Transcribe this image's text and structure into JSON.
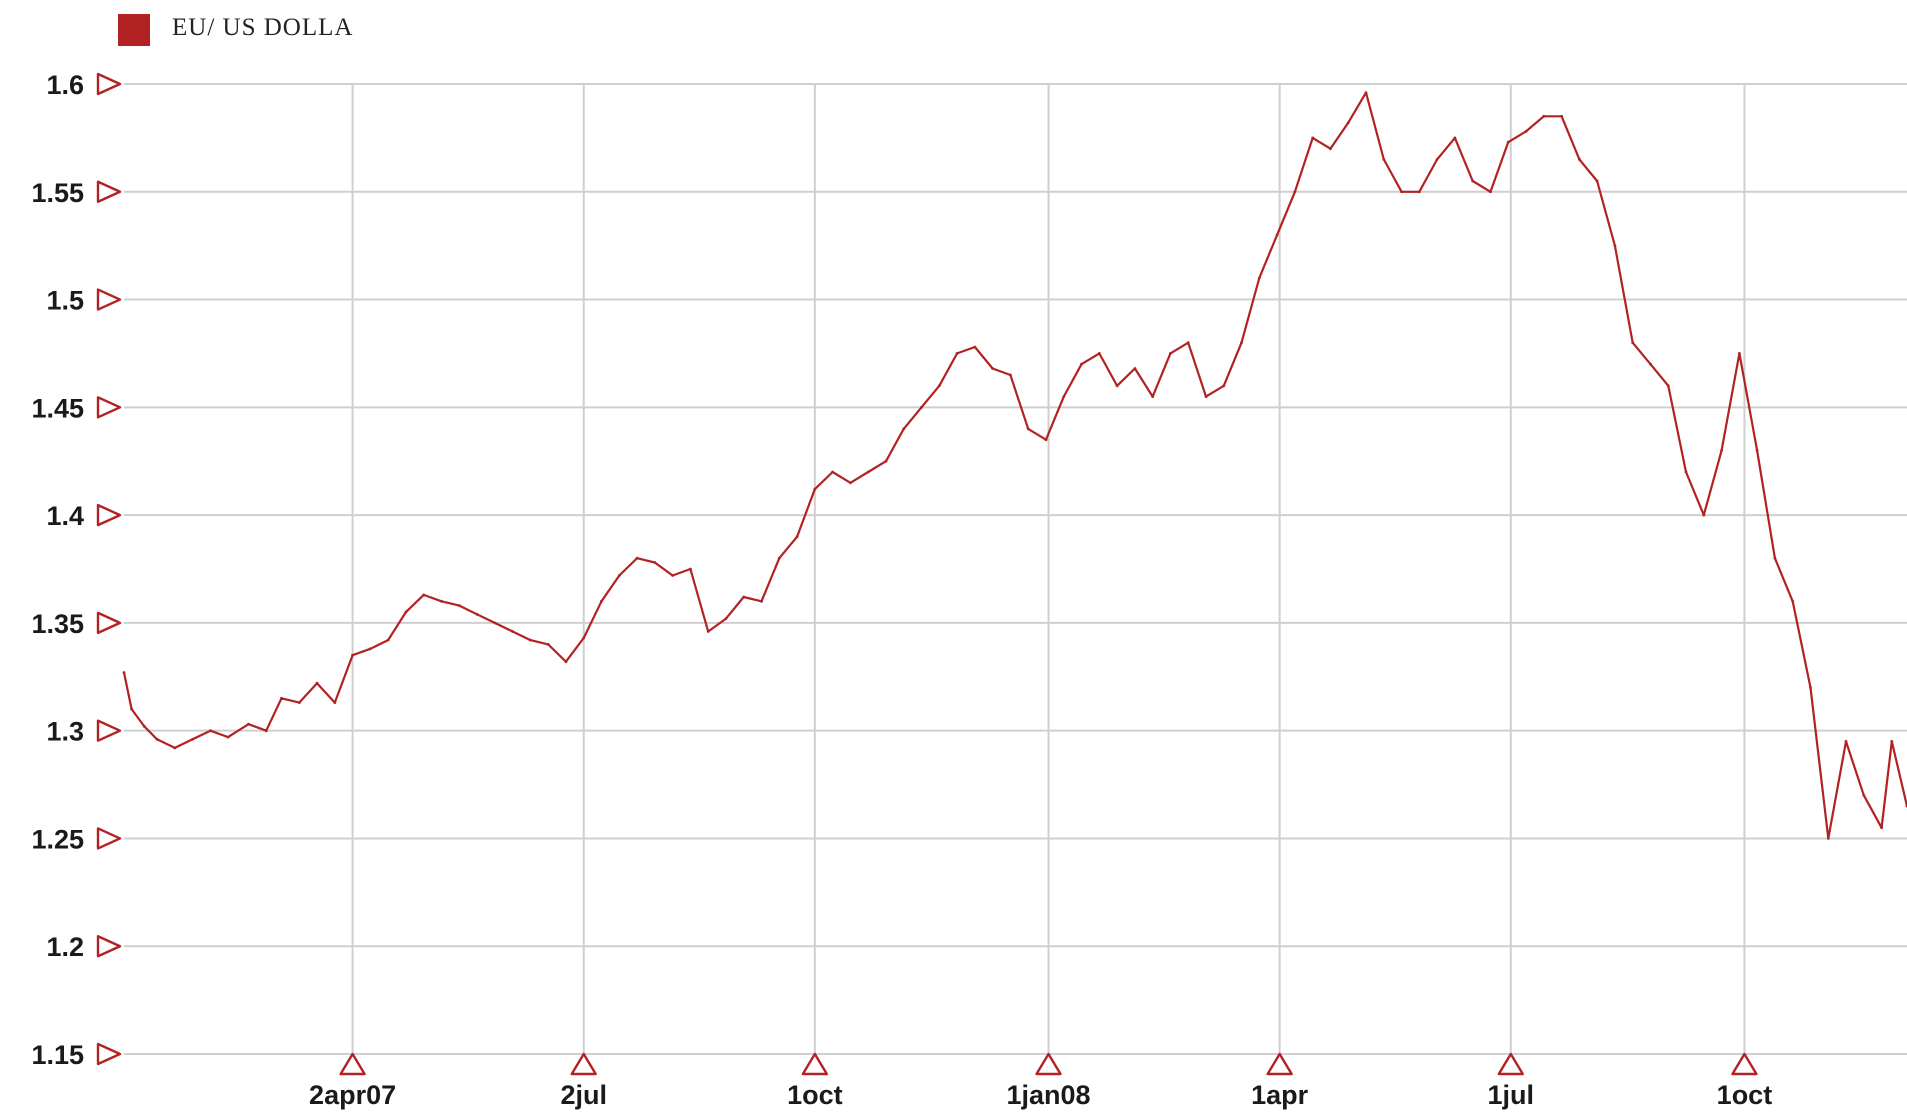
{
  "chart_data": {
    "type": "line",
    "legend": {
      "label": "EU/ US DOLLA",
      "position": "top-left"
    },
    "colors": {
      "line": "#b22222",
      "marker": "#b22222",
      "grid": "#cfcfcf",
      "swatch": "#b22222"
    },
    "x_ticks": [
      {
        "date": "2007-04-02",
        "label": "2apr07"
      },
      {
        "date": "2007-07-02",
        "label": "2jul"
      },
      {
        "date": "2007-10-01",
        "label": "1oct"
      },
      {
        "date": "2008-01-01",
        "label": "1jan08"
      },
      {
        "date": "2008-04-01",
        "label": "1apr"
      },
      {
        "date": "2008-07-01",
        "label": "1jul"
      },
      {
        "date": "2008-10-01",
        "label": "1oct"
      }
    ],
    "y_ticks": [
      {
        "value": 1.6,
        "label": "1.6"
      },
      {
        "value": 1.55,
        "label": "1.55"
      },
      {
        "value": 1.5,
        "label": "1.5"
      },
      {
        "value": 1.45,
        "label": "1.45"
      },
      {
        "value": 1.4,
        "label": "1.4"
      },
      {
        "value": 1.35,
        "label": "1.35"
      },
      {
        "value": 1.3,
        "label": "1.3"
      },
      {
        "value": 1.25,
        "label": "1.25"
      },
      {
        "value": 1.2,
        "label": "1.2"
      },
      {
        "value": 1.15,
        "label": "1.15"
      }
    ],
    "xlim": [
      "2007-01-02",
      "2008-12-04"
    ],
    "ylim": [
      1.15,
      1.6
    ],
    "grid": true,
    "series": [
      {
        "name": "EU/ US DOLLA",
        "points": [
          [
            "2007-01-02",
            1.327
          ],
          [
            "2007-01-05",
            1.31
          ],
          [
            "2007-01-10",
            1.302
          ],
          [
            "2007-01-15",
            1.296
          ],
          [
            "2007-01-22",
            1.292
          ],
          [
            "2007-01-29",
            1.296
          ],
          [
            "2007-02-05",
            1.3
          ],
          [
            "2007-02-12",
            1.297
          ],
          [
            "2007-02-20",
            1.303
          ],
          [
            "2007-02-27",
            1.3
          ],
          [
            "2007-03-05",
            1.315
          ],
          [
            "2007-03-12",
            1.313
          ],
          [
            "2007-03-19",
            1.322
          ],
          [
            "2007-03-26",
            1.313
          ],
          [
            "2007-04-02",
            1.335
          ],
          [
            "2007-04-09",
            1.338
          ],
          [
            "2007-04-16",
            1.342
          ],
          [
            "2007-04-23",
            1.355
          ],
          [
            "2007-04-30",
            1.363
          ],
          [
            "2007-05-07",
            1.36
          ],
          [
            "2007-05-14",
            1.358
          ],
          [
            "2007-05-21",
            1.354
          ],
          [
            "2007-05-28",
            1.35
          ],
          [
            "2007-06-04",
            1.346
          ],
          [
            "2007-06-11",
            1.342
          ],
          [
            "2007-06-18",
            1.34
          ],
          [
            "2007-06-25",
            1.332
          ],
          [
            "2007-07-02",
            1.343
          ],
          [
            "2007-07-09",
            1.36
          ],
          [
            "2007-07-16",
            1.372
          ],
          [
            "2007-07-23",
            1.38
          ],
          [
            "2007-07-30",
            1.378
          ],
          [
            "2007-08-06",
            1.372
          ],
          [
            "2007-08-13",
            1.375
          ],
          [
            "2007-08-20",
            1.346
          ],
          [
            "2007-08-27",
            1.352
          ],
          [
            "2007-09-03",
            1.362
          ],
          [
            "2007-09-10",
            1.36
          ],
          [
            "2007-09-17",
            1.38
          ],
          [
            "2007-09-24",
            1.39
          ],
          [
            "2007-10-01",
            1.412
          ],
          [
            "2007-10-08",
            1.42
          ],
          [
            "2007-10-15",
            1.415
          ],
          [
            "2007-10-22",
            1.42
          ],
          [
            "2007-10-29",
            1.425
          ],
          [
            "2007-11-05",
            1.44
          ],
          [
            "2007-11-12",
            1.45
          ],
          [
            "2007-11-19",
            1.46
          ],
          [
            "2007-11-26",
            1.475
          ],
          [
            "2007-12-03",
            1.478
          ],
          [
            "2007-12-10",
            1.468
          ],
          [
            "2007-12-17",
            1.465
          ],
          [
            "2007-12-24",
            1.44
          ],
          [
            "2007-12-31",
            1.435
          ],
          [
            "2008-01-07",
            1.455
          ],
          [
            "2008-01-14",
            1.47
          ],
          [
            "2008-01-21",
            1.475
          ],
          [
            "2008-01-28",
            1.46
          ],
          [
            "2008-02-04",
            1.468
          ],
          [
            "2008-02-11",
            1.455
          ],
          [
            "2008-02-18",
            1.475
          ],
          [
            "2008-02-25",
            1.48
          ],
          [
            "2008-03-03",
            1.455
          ],
          [
            "2008-03-10",
            1.46
          ],
          [
            "2008-03-17",
            1.48
          ],
          [
            "2008-03-24",
            1.51
          ],
          [
            "2008-03-31",
            1.53
          ],
          [
            "2008-04-07",
            1.55
          ],
          [
            "2008-04-14",
            1.575
          ],
          [
            "2008-04-21",
            1.57
          ],
          [
            "2008-04-28",
            1.582
          ],
          [
            "2008-05-05",
            1.596
          ],
          [
            "2008-05-12",
            1.565
          ],
          [
            "2008-05-19",
            1.55
          ],
          [
            "2008-05-26",
            1.55
          ],
          [
            "2008-06-02",
            1.565
          ],
          [
            "2008-06-09",
            1.575
          ],
          [
            "2008-06-16",
            1.555
          ],
          [
            "2008-06-23",
            1.55
          ],
          [
            "2008-06-30",
            1.573
          ],
          [
            "2008-07-07",
            1.578
          ],
          [
            "2008-07-14",
            1.585
          ],
          [
            "2008-07-21",
            1.585
          ],
          [
            "2008-07-28",
            1.565
          ],
          [
            "2008-08-04",
            1.555
          ],
          [
            "2008-08-11",
            1.525
          ],
          [
            "2008-08-18",
            1.48
          ],
          [
            "2008-08-25",
            1.47
          ],
          [
            "2008-09-01",
            1.46
          ],
          [
            "2008-09-08",
            1.42
          ],
          [
            "2008-09-15",
            1.4
          ],
          [
            "2008-09-22",
            1.43
          ],
          [
            "2008-09-29",
            1.475
          ],
          [
            "2008-10-06",
            1.43
          ],
          [
            "2008-10-13",
            1.38
          ],
          [
            "2008-10-20",
            1.36
          ],
          [
            "2008-10-27",
            1.32
          ],
          [
            "2008-11-03",
            1.25
          ],
          [
            "2008-11-10",
            1.295
          ],
          [
            "2008-11-17",
            1.27
          ],
          [
            "2008-11-24",
            1.255
          ],
          [
            "2008-11-28",
            1.295
          ],
          [
            "2008-12-04",
            1.265
          ]
        ]
      }
    ]
  }
}
